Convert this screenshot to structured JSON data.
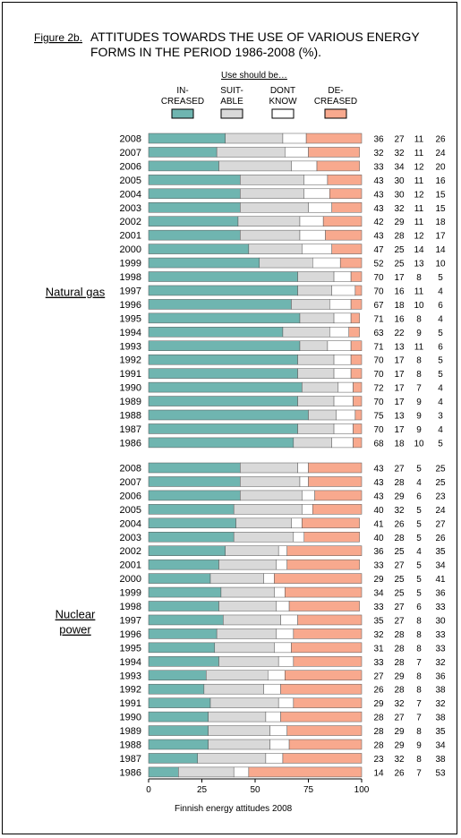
{
  "figure_label": "Figure 2b.",
  "title_line1": "ATTITUDES TOWARDS THE USE OF VARIOUS ENERGY",
  "title_line2": "FORMS IN THE PERIOD 1986-2008 (%).",
  "legend_title": "Use should be…",
  "footer": "Finnish energy attitudes 2008",
  "colors": {
    "increased": "#6fb5b0",
    "suitable": "#d9d9d9",
    "dont_know": "#ffffff",
    "decreased": "#f8a98e"
  },
  "chart_data": {
    "type": "bar",
    "orientation": "horizontal-stacked",
    "xlim": [
      0,
      100
    ],
    "xticks": [
      "0",
      "25",
      "50",
      "75",
      "100"
    ],
    "legend": [
      {
        "key": "increased",
        "line1": "IN-",
        "line2": "CREASED"
      },
      {
        "key": "suitable",
        "line1": "SUIT-",
        "line2": "ABLE"
      },
      {
        "key": "dont_know",
        "line1": "DONT",
        "line2": "KNOW"
      },
      {
        "key": "decreased",
        "line1": "DE-",
        "line2": "CREASED"
      }
    ],
    "groups": [
      {
        "name_lines": [
          "Natural gas"
        ],
        "rows": [
          {
            "year": "2008",
            "values": [
              36,
              27,
              11,
              26
            ]
          },
          {
            "year": "2007",
            "values": [
              32,
              32,
              11,
              24
            ]
          },
          {
            "year": "2006",
            "values": [
              33,
              34,
              12,
              20
            ]
          },
          {
            "year": "2005",
            "values": [
              43,
              30,
              11,
              16
            ]
          },
          {
            "year": "2004",
            "values": [
              43,
              30,
              12,
              15
            ]
          },
          {
            "year": "2003",
            "values": [
              43,
              32,
              11,
              15
            ]
          },
          {
            "year": "2002",
            "values": [
              42,
              29,
              11,
              18
            ]
          },
          {
            "year": "2001",
            "values": [
              43,
              28,
              12,
              17
            ]
          },
          {
            "year": "2000",
            "values": [
              47,
              25,
              14,
              14
            ]
          },
          {
            "year": "1999",
            "values": [
              52,
              25,
              13,
              10
            ]
          },
          {
            "year": "1998",
            "values": [
              70,
              17,
              8,
              5
            ]
          },
          {
            "year": "1997",
            "values": [
              70,
              16,
              11,
              4
            ]
          },
          {
            "year": "1996",
            "values": [
              67,
              18,
              10,
              6
            ]
          },
          {
            "year": "1995",
            "values": [
              71,
              16,
              8,
              4
            ]
          },
          {
            "year": "1994",
            "values": [
              63,
              22,
              9,
              5
            ]
          },
          {
            "year": "1993",
            "values": [
              71,
              13,
              11,
              6
            ]
          },
          {
            "year": "1992",
            "values": [
              70,
              17,
              8,
              5
            ]
          },
          {
            "year": "1991",
            "values": [
              70,
              17,
              8,
              5
            ]
          },
          {
            "year": "1990",
            "values": [
              72,
              17,
              7,
              4
            ]
          },
          {
            "year": "1989",
            "values": [
              70,
              17,
              9,
              4
            ]
          },
          {
            "year": "1988",
            "values": [
              75,
              13,
              9,
              3
            ]
          },
          {
            "year": "1987",
            "values": [
              70,
              17,
              9,
              4
            ]
          },
          {
            "year": "1986",
            "values": [
              68,
              18,
              10,
              5
            ]
          }
        ]
      },
      {
        "name_lines": [
          "Nuclear",
          "power"
        ],
        "rows": [
          {
            "year": "2008",
            "values": [
              43,
              27,
              5,
              25
            ]
          },
          {
            "year": "2007",
            "values": [
              43,
              28,
              4,
              25
            ]
          },
          {
            "year": "2006",
            "values": [
              43,
              29,
              6,
              23
            ]
          },
          {
            "year": "2005",
            "values": [
              40,
              32,
              5,
              24
            ]
          },
          {
            "year": "2004",
            "values": [
              41,
              26,
              5,
              27
            ]
          },
          {
            "year": "2003",
            "values": [
              40,
              28,
              5,
              26
            ]
          },
          {
            "year": "2002",
            "values": [
              36,
              25,
              4,
              35
            ]
          },
          {
            "year": "2001",
            "values": [
              33,
              27,
              5,
              34
            ]
          },
          {
            "year": "2000",
            "values": [
              29,
              25,
              5,
              41
            ]
          },
          {
            "year": "1999",
            "values": [
              34,
              25,
              5,
              36
            ]
          },
          {
            "year": "1998",
            "values": [
              33,
              27,
              6,
              33
            ]
          },
          {
            "year": "1997",
            "values": [
              35,
              27,
              8,
              30
            ]
          },
          {
            "year": "1996",
            "values": [
              32,
              28,
              8,
              33
            ]
          },
          {
            "year": "1995",
            "values": [
              31,
              28,
              8,
              33
            ]
          },
          {
            "year": "1994",
            "values": [
              33,
              28,
              7,
              32
            ]
          },
          {
            "year": "1993",
            "values": [
              27,
              29,
              8,
              36
            ]
          },
          {
            "year": "1992",
            "values": [
              26,
              28,
              8,
              38
            ]
          },
          {
            "year": "1991",
            "values": [
              29,
              32,
              7,
              32
            ]
          },
          {
            "year": "1990",
            "values": [
              28,
              27,
              7,
              38
            ]
          },
          {
            "year": "1989",
            "values": [
              28,
              29,
              8,
              35
            ]
          },
          {
            "year": "1988",
            "values": [
              28,
              29,
              9,
              34
            ]
          },
          {
            "year": "1987",
            "values": [
              23,
              32,
              8,
              38
            ]
          },
          {
            "year": "1986",
            "values": [
              14,
              26,
              7,
              53
            ]
          }
        ]
      }
    ]
  }
}
